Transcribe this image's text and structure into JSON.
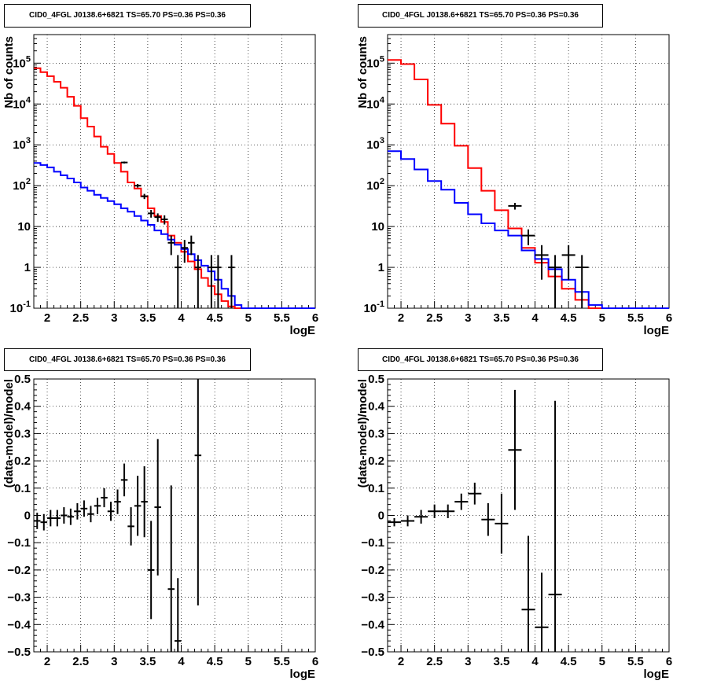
{
  "chart_data": [
    {
      "type": "step-histogram",
      "title": "CID0_4FGL J0138.6+6821 TS=65.70 PS=0.36 PS=0.36",
      "xlabel": "logE",
      "ylabel": "Nb of counts",
      "xlim": [
        1.8,
        6.0
      ],
      "ylim": [
        0.1,
        500000
      ],
      "yscale": "log",
      "grid": true,
      "x_ticks": [
        "2",
        "2.5",
        "3",
        "3.5",
        "4",
        "4.5",
        "5",
        "5.5",
        "6"
      ],
      "y_ticks": [
        "10^-1",
        "1",
        "10",
        "10^2",
        "10^3",
        "10^4",
        "10^5"
      ],
      "bin_edges": [
        1.8,
        1.9,
        2.0,
        2.1,
        2.2,
        2.3,
        2.4,
        2.5,
        2.6,
        2.7,
        2.8,
        2.9,
        3.0,
        3.1,
        3.2,
        3.3,
        3.4,
        3.5,
        3.6,
        3.7,
        3.8,
        3.9,
        4.0,
        4.1,
        4.2,
        4.3,
        4.4,
        4.5,
        4.6,
        4.7,
        4.8,
        4.9,
        5.0,
        5.1,
        5.2,
        5.3,
        5.4,
        5.5,
        5.6,
        5.7,
        5.8,
        5.9,
        6.0
      ],
      "series": [
        {
          "color": "#ff0000",
          "values": [
            75000,
            60000,
            48000,
            35000,
            25000,
            15000,
            9000,
            4500,
            2800,
            1600,
            900,
            600,
            360,
            220,
            120,
            85,
            55,
            28,
            18,
            13,
            6,
            4,
            2.4,
            1.4,
            0.9,
            0.55,
            0.35,
            0.22,
            0.15,
            0.11,
            0.1,
            0.1,
            0.1,
            0.1,
            0.1,
            0.1,
            0.1,
            0.1,
            0.1,
            0.1,
            0.1,
            0.1
          ]
        },
        {
          "color": "#0000ff",
          "values": [
            360,
            320,
            280,
            220,
            180,
            150,
            120,
            90,
            75,
            60,
            50,
            42,
            35,
            28,
            23,
            18,
            14,
            11,
            8,
            6.5,
            4.8,
            3.6,
            2.8,
            2.1,
            1.5,
            1.1,
            0.8,
            0.5,
            0.3,
            0.2,
            0.12,
            0.1,
            0.1,
            0.1,
            0.1,
            0.1,
            0.1,
            0.1,
            0.1,
            0.1,
            0.1,
            0.1
          ]
        }
      ],
      "data_points": [
        {
          "x": 3.15,
          "y": 370,
          "yerr": 20
        },
        {
          "x": 3.35,
          "y": 100,
          "yerr": 10
        },
        {
          "x": 3.45,
          "y": 55,
          "yerr": 8
        },
        {
          "x": 3.55,
          "y": 21,
          "yerr": 4.5
        },
        {
          "x": 3.65,
          "y": 17,
          "yerr": 4
        },
        {
          "x": 3.75,
          "y": 15,
          "yerr": 3.8
        },
        {
          "x": 3.85,
          "y": 4,
          "yerr": 2
        },
        {
          "x": 3.95,
          "y": 1,
          "yerr": 1
        },
        {
          "x": 4.05,
          "y": 3,
          "yerr": 1.7
        },
        {
          "x": 4.15,
          "y": 4,
          "yerr": 2
        },
        {
          "x": 4.25,
          "y": 1,
          "yerr": 1
        },
        {
          "x": 4.45,
          "y": 1,
          "yerr": 1
        },
        {
          "x": 4.55,
          "y": 1,
          "yerr": 1
        },
        {
          "x": 4.75,
          "y": 1,
          "yerr": 1
        }
      ]
    },
    {
      "type": "step-histogram",
      "title": "CID0_4FGL J0138.6+6821 TS=65.70 PS=0.36 PS=0.36",
      "xlabel": "logE",
      "ylabel": "Nb of counts",
      "xlim": [
        1.8,
        6.0
      ],
      "ylim": [
        0.1,
        500000
      ],
      "yscale": "log",
      "grid": true,
      "x_ticks": [
        "2",
        "2.5",
        "3",
        "3.5",
        "4",
        "4.5",
        "5",
        "5.5",
        "6"
      ],
      "y_ticks": [
        "10^-1",
        "1",
        "10",
        "10^2",
        "10^3",
        "10^4",
        "10^5"
      ],
      "bin_edges": [
        1.8,
        2.0,
        2.2,
        2.4,
        2.6,
        2.8,
        3.0,
        3.2,
        3.4,
        3.6,
        3.8,
        4.0,
        4.2,
        4.4,
        4.6,
        4.8,
        5.0,
        5.2,
        5.4,
        5.6,
        5.8,
        6.0
      ],
      "series": [
        {
          "color": "#ff0000",
          "values": [
            120000,
            95000,
            40000,
            9500,
            3300,
            950,
            270,
            75,
            25,
            9,
            3,
            1.3,
            0.6,
            0.3,
            0.16,
            0.1,
            0.1,
            0.1,
            0.1,
            0.1,
            0.1
          ]
        },
        {
          "color": "#0000ff",
          "values": [
            700,
            450,
            250,
            130,
            80,
            38,
            20,
            12,
            8,
            6,
            2.6,
            1.6,
            0.9,
            0.5,
            0.25,
            0.12,
            0.1,
            0.1,
            0.1,
            0.1,
            0.1
          ]
        }
      ],
      "data_points": [
        {
          "x": 3.7,
          "y": 32,
          "yerr": 6
        },
        {
          "x": 3.9,
          "y": 6,
          "yerr": 2.5
        },
        {
          "x": 4.1,
          "y": 2,
          "yerr": 1.5
        },
        {
          "x": 4.3,
          "y": 1,
          "yerr": 1
        },
        {
          "x": 4.5,
          "y": 2,
          "yerr": 1.5
        },
        {
          "x": 4.7,
          "y": 1,
          "yerr": 1
        }
      ]
    },
    {
      "type": "scatter-errorbars",
      "title": "CID0_4FGL J0138.6+6821 TS=65.70 PS=0.36 PS=0.36",
      "xlabel": "logE",
      "ylabel": "(data-model)/model",
      "xlim": [
        1.8,
        6.0
      ],
      "ylim": [
        -0.5,
        0.5
      ],
      "yscale": "linear",
      "grid": true,
      "x_ticks": [
        "2",
        "2.5",
        "3",
        "3.5",
        "4",
        "4.5",
        "5",
        "5.5",
        "6"
      ],
      "y_ticks": [
        "-0.5",
        "-0.4",
        "-0.3",
        "-0.2",
        "-0.1",
        "0",
        "0.1",
        "0.2",
        "0.3",
        "0.4",
        "0.5"
      ],
      "data_points": [
        {
          "x": 1.85,
          "y": -0.02,
          "xerr": 0.05,
          "yerr": 0.03
        },
        {
          "x": 1.95,
          "y": -0.025,
          "xerr": 0.05,
          "yerr": 0.03
        },
        {
          "x": 2.05,
          "y": -0.01,
          "xerr": 0.05,
          "yerr": 0.03
        },
        {
          "x": 2.15,
          "y": -0.01,
          "xerr": 0.05,
          "yerr": 0.03
        },
        {
          "x": 2.25,
          "y": 0.0,
          "xerr": 0.05,
          "yerr": 0.03
        },
        {
          "x": 2.35,
          "y": -0.005,
          "xerr": 0.05,
          "yerr": 0.03
        },
        {
          "x": 2.45,
          "y": 0.015,
          "xerr": 0.05,
          "yerr": 0.03
        },
        {
          "x": 2.55,
          "y": 0.025,
          "xerr": 0.05,
          "yerr": 0.03
        },
        {
          "x": 2.65,
          "y": 0.005,
          "xerr": 0.05,
          "yerr": 0.03
        },
        {
          "x": 2.75,
          "y": 0.035,
          "xerr": 0.05,
          "yerr": 0.03
        },
        {
          "x": 2.85,
          "y": 0.065,
          "xerr": 0.05,
          "yerr": 0.035
        },
        {
          "x": 2.95,
          "y": 0.015,
          "xerr": 0.05,
          "yerr": 0.035
        },
        {
          "x": 3.05,
          "y": 0.05,
          "xerr": 0.05,
          "yerr": 0.045
        },
        {
          "x": 3.15,
          "y": 0.13,
          "xerr": 0.05,
          "yerr": 0.06
        },
        {
          "x": 3.25,
          "y": -0.04,
          "xerr": 0.05,
          "yerr": 0.07
        },
        {
          "x": 3.35,
          "y": 0.035,
          "xerr": 0.05,
          "yerr": 0.11
        },
        {
          "x": 3.45,
          "y": 0.05,
          "xerr": 0.05,
          "yerr": 0.13
        },
        {
          "x": 3.55,
          "y": -0.2,
          "xerr": 0.05,
          "yerr": 0.18
        },
        {
          "x": 3.65,
          "y": 0.03,
          "xerr": 0.05,
          "yerr": 0.25
        },
        {
          "x": 3.85,
          "y": -0.27,
          "xerr": 0.05,
          "yerr": 0.38
        },
        {
          "x": 3.95,
          "y": -0.46,
          "xerr": 0.05,
          "yerr": 0.23
        },
        {
          "x": 4.25,
          "y": 0.22,
          "xerr": 0.05,
          "yerr": 0.55
        }
      ]
    },
    {
      "type": "scatter-errorbars",
      "title": "CID0_4FGL J0138.6+6821 TS=65.70 PS=0.36 PS=0.36",
      "xlabel": "logE",
      "ylabel": "(data-model)/model",
      "xlim": [
        1.8,
        6.0
      ],
      "ylim": [
        -0.5,
        0.5
      ],
      "yscale": "linear",
      "grid": true,
      "x_ticks": [
        "2",
        "2.5",
        "3",
        "3.5",
        "4",
        "4.5",
        "5",
        "5.5",
        "6"
      ],
      "y_ticks": [
        "-0.5",
        "-0.4",
        "-0.3",
        "-0.2",
        "-0.1",
        "0",
        "0.1",
        "0.2",
        "0.3",
        "0.4",
        "0.5"
      ],
      "data_points": [
        {
          "x": 1.9,
          "y": -0.025,
          "xerr": 0.1,
          "yerr": 0.015
        },
        {
          "x": 2.1,
          "y": -0.02,
          "xerr": 0.1,
          "yerr": 0.02
        },
        {
          "x": 2.3,
          "y": -0.005,
          "xerr": 0.1,
          "yerr": 0.025
        },
        {
          "x": 2.5,
          "y": 0.015,
          "xerr": 0.1,
          "yerr": 0.025
        },
        {
          "x": 2.7,
          "y": 0.015,
          "xerr": 0.1,
          "yerr": 0.025
        },
        {
          "x": 2.9,
          "y": 0.05,
          "xerr": 0.1,
          "yerr": 0.03
        },
        {
          "x": 3.1,
          "y": 0.08,
          "xerr": 0.1,
          "yerr": 0.04
        },
        {
          "x": 3.3,
          "y": -0.015,
          "xerr": 0.1,
          "yerr": 0.06
        },
        {
          "x": 3.5,
          "y": -0.03,
          "xerr": 0.1,
          "yerr": 0.11
        },
        {
          "x": 3.7,
          "y": 0.24,
          "xerr": 0.1,
          "yerr": 0.22
        },
        {
          "x": 3.9,
          "y": -0.345,
          "xerr": 0.1,
          "yerr": 0.27
        },
        {
          "x": 4.1,
          "y": -0.41,
          "xerr": 0.1,
          "yerr": 0.2
        },
        {
          "x": 4.3,
          "y": -0.29,
          "xerr": 0.1,
          "yerr": 0.71
        }
      ]
    }
  ]
}
